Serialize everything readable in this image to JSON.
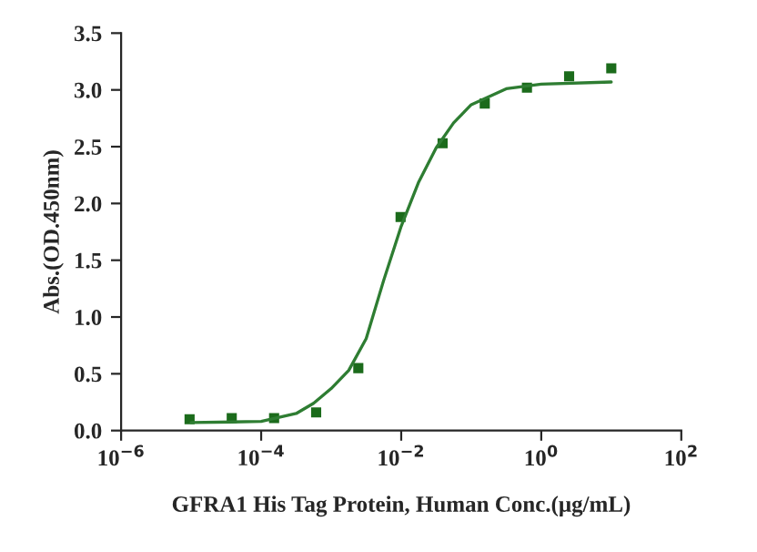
{
  "chart_data": {
    "type": "line",
    "xlabel": "GFRA1 His Tag Protein, Human Conc.(μg/mL)",
    "ylabel": "Abs.(OD.450nm)",
    "log": "x",
    "grid": false,
    "series": [
      {
        "type": "scatter",
        "marker": "square",
        "color": "#1b6b1b",
        "x": [
          9.5e-06,
          3.8e-05,
          0.000153,
          0.00061,
          0.00244,
          0.0098,
          0.039,
          0.156,
          0.625,
          2.5,
          10
        ],
        "values": [
          0.1,
          0.11,
          0.11,
          0.16,
          0.55,
          1.88,
          2.53,
          2.88,
          3.02,
          3.12,
          3.19
        ]
      },
      {
        "color": "#2e7d32",
        "x": [
          1e-05,
          0.0001,
          0.000316,
          0.00056,
          0.001,
          0.00178,
          0.00316,
          0.0056,
          0.01,
          0.0178,
          0.0316,
          0.056,
          0.1,
          0.316,
          1,
          10
        ],
        "values": [
          0.07,
          0.08,
          0.15,
          0.24,
          0.37,
          0.53,
          0.81,
          1.32,
          1.8,
          2.19,
          2.49,
          2.71,
          2.87,
          3.01,
          3.05,
          3.07
        ]
      }
    ],
    "xlim": [
      1e-06,
      100
    ],
    "xticks": [
      {
        "value": 1e-06,
        "label": "10$^{−6}$"
      },
      {
        "value": 0.0001,
        "label": "10$^{−4}$"
      },
      {
        "value": 0.01,
        "label": "10$^{−2}$"
      },
      {
        "value": 1,
        "label": "10$^{0}$"
      },
      {
        "value": 100,
        "label": "10$^{2}$"
      }
    ],
    "ylim": [
      0,
      3.5
    ],
    "yticks": [
      {
        "value": 0,
        "label": "0.0"
      },
      {
        "value": 0.5,
        "label": "0.5"
      },
      {
        "value": 1,
        "label": "1.0"
      },
      {
        "value": 1.5,
        "label": "1.5"
      },
      {
        "value": 2,
        "label": "2.0"
      },
      {
        "value": 2.5,
        "label": "2.5"
      },
      {
        "value": 3,
        "label": "3.0"
      },
      {
        "value": 3.5,
        "label": "3.5"
      }
    ]
  }
}
